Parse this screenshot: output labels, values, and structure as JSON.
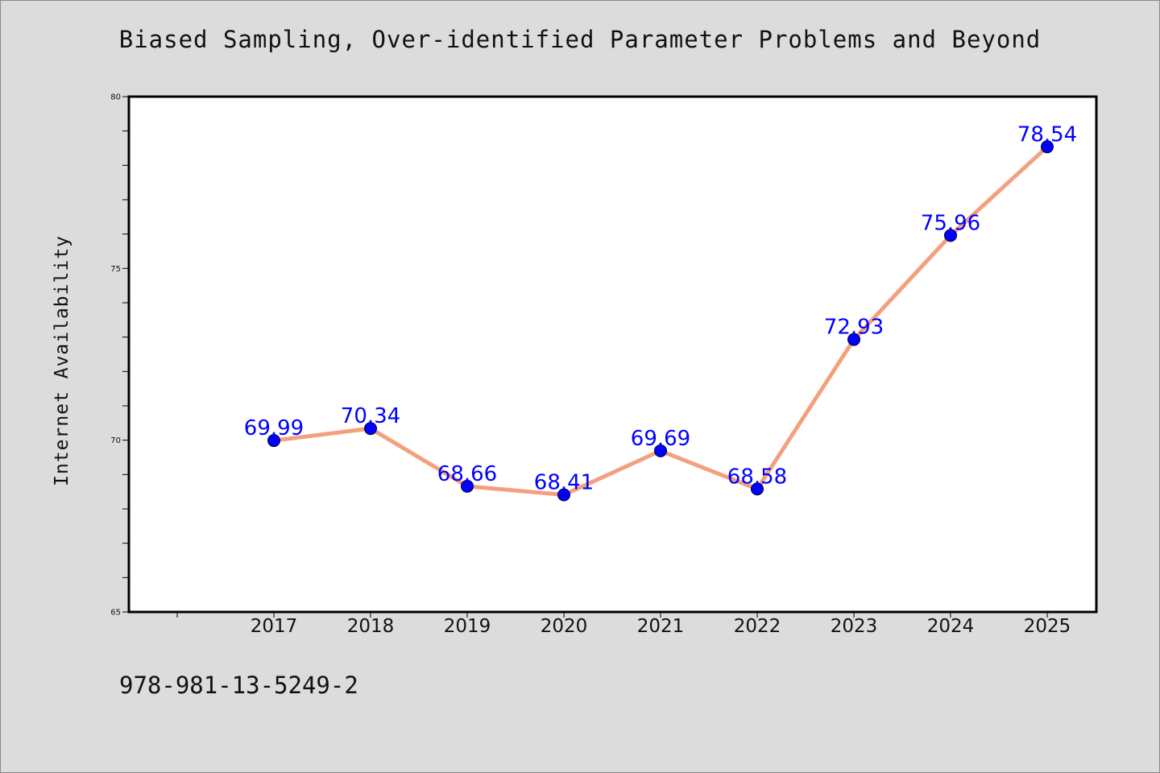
{
  "chart_data": {
    "type": "line",
    "title": "Biased Sampling, Over-identified Parameter Problems and Beyond",
    "xlabel": "",
    "ylabel": "Internet Availability",
    "categories": [
      "2017",
      "2018",
      "2019",
      "2020",
      "2021",
      "2022",
      "2023",
      "2024",
      "2025"
    ],
    "series": [
      {
        "values": [
          69.99,
          70.34,
          68.66,
          68.41,
          69.69,
          68.58,
          72.93,
          75.96,
          78.54
        ],
        "data_labels": [
          "69.99",
          "70.34",
          "68.66",
          "68.41",
          "69.69",
          "68.58",
          "72.93",
          "75.96",
          "78.54"
        ]
      }
    ],
    "ylim": [
      65,
      80
    ],
    "yticks": [
      65,
      70,
      75,
      80
    ],
    "ytick_labels": [
      "65",
      "70",
      "75",
      "80"
    ],
    "grid": false,
    "colors": {
      "line": "#f4a07e",
      "marker": "#0000ff",
      "data_label": "#0000ff",
      "background": "#dcdcdc",
      "plot_background": "#ffffff"
    }
  },
  "footer": {
    "isbn": "978-981-13-5249-2"
  }
}
